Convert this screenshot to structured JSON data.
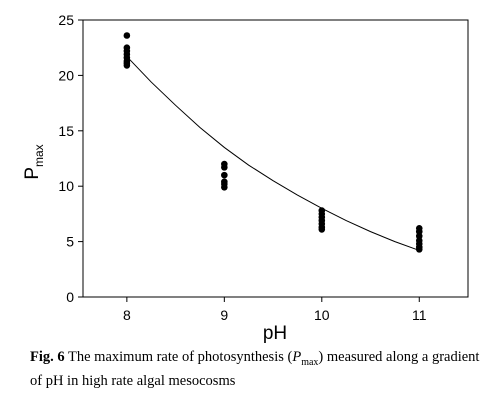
{
  "chart_data": {
    "type": "scatter",
    "xlabel": "pH",
    "ylabel": "P",
    "ylabel_sub": "max",
    "xlim": [
      7.55,
      11.5
    ],
    "ylim": [
      0,
      25
    ],
    "xticks": [
      8,
      9,
      10,
      11
    ],
    "yticks": [
      0,
      5,
      10,
      15,
      20,
      25
    ],
    "grid": false,
    "points": [
      {
        "x": 8,
        "y": 23.6
      },
      {
        "x": 8,
        "y": 22.5
      },
      {
        "x": 8,
        "y": 22.2
      },
      {
        "x": 8,
        "y": 21.9
      },
      {
        "x": 8,
        "y": 21.6
      },
      {
        "x": 8,
        "y": 21.3
      },
      {
        "x": 8,
        "y": 21.1
      },
      {
        "x": 8,
        "y": 20.9
      },
      {
        "x": 9,
        "y": 12.0
      },
      {
        "x": 9,
        "y": 11.7
      },
      {
        "x": 9,
        "y": 11.0
      },
      {
        "x": 9,
        "y": 10.4
      },
      {
        "x": 9,
        "y": 10.2
      },
      {
        "x": 9,
        "y": 9.9
      },
      {
        "x": 10,
        "y": 7.8
      },
      {
        "x": 10,
        "y": 7.5
      },
      {
        "x": 10,
        "y": 7.2
      },
      {
        "x": 10,
        "y": 6.9
      },
      {
        "x": 10,
        "y": 6.6
      },
      {
        "x": 10,
        "y": 6.3
      },
      {
        "x": 10,
        "y": 6.1
      },
      {
        "x": 11,
        "y": 6.2
      },
      {
        "x": 11,
        "y": 5.9
      },
      {
        "x": 11,
        "y": 5.5
      },
      {
        "x": 11,
        "y": 5.1
      },
      {
        "x": 11,
        "y": 4.8
      },
      {
        "x": 11,
        "y": 4.5
      },
      {
        "x": 11,
        "y": 4.3
      }
    ],
    "fit_curve": {
      "x": [
        8.0,
        8.25,
        8.5,
        8.75,
        9.0,
        9.25,
        9.5,
        9.75,
        10.0,
        10.25,
        10.5,
        10.75,
        11.0
      ],
      "y": [
        21.7,
        19.4,
        17.3,
        15.3,
        13.5,
        11.9,
        10.5,
        9.2,
        8.0,
        6.9,
        5.9,
        5.0,
        4.2
      ]
    }
  },
  "caption": {
    "label": "Fig. 6",
    "text_before": "The maximum rate of photosynthesis (",
    "symbol": "P",
    "symbol_sub": "max",
    "text_after": ") measured along a gradient of pH in high rate algal mesocosms"
  }
}
